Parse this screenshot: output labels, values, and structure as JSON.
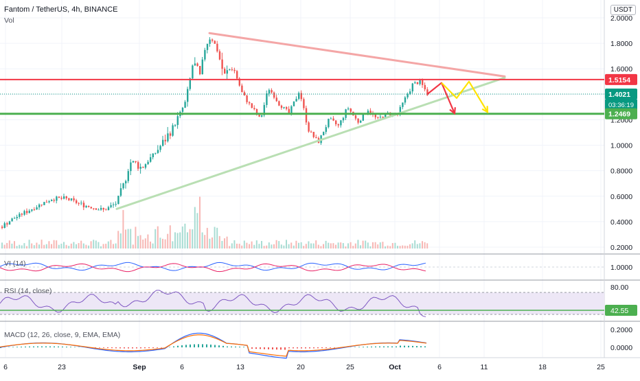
{
  "chart_data": {
    "type": "candlestick",
    "title": "Fantom / TetherUS, 4h, BINANCE",
    "volume_label": "Vol",
    "currency": "USDT",
    "x_ticks": [
      "6",
      "23",
      "Sep",
      "6",
      "13",
      "20",
      "25",
      "Oct",
      "6",
      "11",
      "18",
      "25"
    ],
    "price_axis": {
      "ticks": [
        "2.0000",
        "1.8000",
        "1.6000",
        "1.4000",
        "1.2000",
        "1.0000",
        "0.8000",
        "0.6000",
        "0.4000",
        "0.2000"
      ],
      "ylim": [
        0.2,
        2.0
      ]
    },
    "price_series": [
      {
        "x": 0,
        "y": 0.36
      },
      {
        "x": 20,
        "y": 0.43
      },
      {
        "x": 45,
        "y": 0.5
      },
      {
        "x": 75,
        "y": 0.58
      },
      {
        "x": 95,
        "y": 0.58
      },
      {
        "x": 120,
        "y": 0.53
      },
      {
        "x": 150,
        "y": 0.49
      },
      {
        "x": 170,
        "y": 0.55
      },
      {
        "x": 180,
        "y": 0.72
      },
      {
        "x": 190,
        "y": 0.88
      },
      {
        "x": 205,
        "y": 0.82
      },
      {
        "x": 225,
        "y": 0.94
      },
      {
        "x": 240,
        "y": 1.05
      },
      {
        "x": 255,
        "y": 1.18
      },
      {
        "x": 270,
        "y": 1.35
      },
      {
        "x": 280,
        "y": 1.65
      },
      {
        "x": 290,
        "y": 1.55
      },
      {
        "x": 298,
        "y": 1.78
      },
      {
        "x": 306,
        "y": 1.86
      },
      {
        "x": 315,
        "y": 1.75
      },
      {
        "x": 325,
        "y": 1.55
      },
      {
        "x": 338,
        "y": 1.62
      },
      {
        "x": 352,
        "y": 1.4
      },
      {
        "x": 365,
        "y": 1.3
      },
      {
        "x": 378,
        "y": 1.2
      },
      {
        "x": 390,
        "y": 1.45
      },
      {
        "x": 405,
        "y": 1.33
      },
      {
        "x": 420,
        "y": 1.25
      },
      {
        "x": 435,
        "y": 1.43
      },
      {
        "x": 448,
        "y": 1.12
      },
      {
        "x": 462,
        "y": 1.02
      },
      {
        "x": 478,
        "y": 1.2
      },
      {
        "x": 492,
        "y": 1.15
      },
      {
        "x": 505,
        "y": 1.3
      },
      {
        "x": 520,
        "y": 1.18
      },
      {
        "x": 535,
        "y": 1.28
      },
      {
        "x": 548,
        "y": 1.2
      },
      {
        "x": 562,
        "y": 1.25
      },
      {
        "x": 578,
        "y": 1.24
      },
      {
        "x": 590,
        "y": 1.38
      },
      {
        "x": 600,
        "y": 1.48
      },
      {
        "x": 610,
        "y": 1.5
      },
      {
        "x": 622,
        "y": 1.4
      }
    ],
    "levels": [
      {
        "name": "resistance",
        "value": 1.5154,
        "color": "#f23645",
        "label": "1.5154"
      },
      {
        "name": "support",
        "value": 1.2469,
        "color": "#4caf50",
        "label": "1.2469"
      },
      {
        "name": "last",
        "value": 1.4021,
        "color": "#089981",
        "label": "1.4021",
        "countdown": "03:36:19"
      }
    ],
    "trendlines": [
      {
        "name": "descending",
        "from": {
          "x": 305,
          "y": 1.88
        },
        "to": {
          "x": 735,
          "y": 1.54
        },
        "color": "#f4a6a6"
      },
      {
        "name": "ascending",
        "from": {
          "x": 170,
          "y": 0.5
        },
        "to": {
          "x": 735,
          "y": 1.53
        },
        "color": "#b9dfb3"
      }
    ],
    "arrows": [
      {
        "color": "#f23645",
        "points": [
          [
            622,
            1.4
          ],
          [
            643,
            1.49
          ],
          [
            662,
            1.25
          ]
        ]
      },
      {
        "color": "#ffe300",
        "points": [
          [
            643,
            1.49
          ],
          [
            665,
            1.37
          ],
          [
            683,
            1.5
          ],
          [
            710,
            1.26
          ]
        ]
      }
    ],
    "indicators": [
      {
        "name": "VI (14)",
        "ticks": [
          "1.0000"
        ],
        "ylim": [
          0.6,
          1.4
        ],
        "series_colors": [
          "#2962ff",
          "#e91e63"
        ]
      },
      {
        "name": "RSI (14, close)",
        "ticks": [
          "80.00"
        ],
        "value_label": "42.55",
        "band": [
          30,
          70
        ],
        "ylim": [
          20,
          90
        ],
        "colors": {
          "line": "#7e57c2",
          "band": "#ede7f6",
          "value": "#4caf50"
        }
      },
      {
        "name": "MACD (12, 26, close, 9, EMA, EMA)",
        "ticks": [
          "0.2000",
          "0.0000"
        ],
        "ylim": [
          -0.25,
          0.3
        ],
        "colors": {
          "macd": "#2962ff",
          "signal": "#ff6d00",
          "hist_pos": "#26a69a",
          "hist_neg": "#ef5350"
        }
      }
    ],
    "colors": {
      "up": "#26a69a",
      "down": "#ef5350",
      "grid": "#f0f3fa",
      "axis_text": "#131722"
    }
  }
}
